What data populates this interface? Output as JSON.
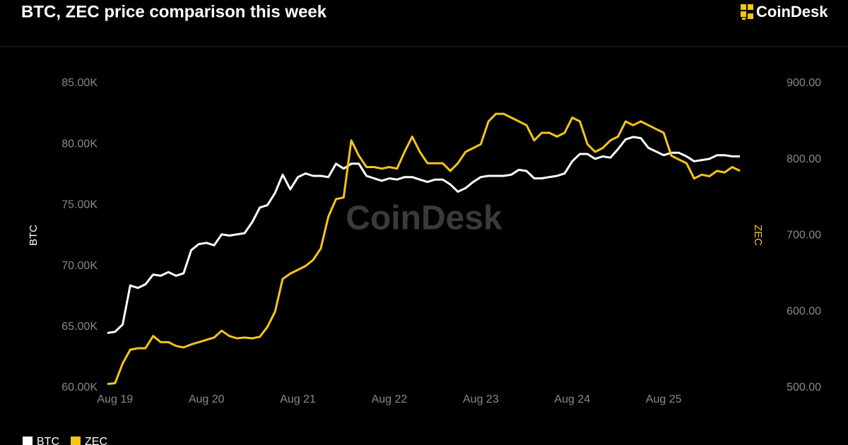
{
  "chart_data": {
    "type": "line",
    "title": "BTC, ZEC price comparison this week",
    "brand": "CoinDesk",
    "watermark": "CoinDesk",
    "y_label": "BTC",
    "y2_label": "ZEC",
    "categories": [
      null,
      "Aug 19",
      null,
      null,
      null,
      null,
      null,
      null,
      null,
      null,
      null,
      null,
      null,
      "Aug 20",
      null,
      null,
      null,
      null,
      null,
      null,
      null,
      null,
      null,
      null,
      null,
      "Aug 21",
      null,
      null,
      null,
      null,
      null,
      null,
      null,
      null,
      null,
      null,
      null,
      "Aug 22",
      null,
      null,
      null,
      null,
      null,
      null,
      null,
      null,
      null,
      null,
      null,
      "Aug 23",
      null,
      null,
      null,
      null,
      null,
      null,
      null,
      null,
      null,
      null,
      null,
      "Aug 24",
      null,
      null,
      null,
      null,
      null,
      null,
      null,
      null,
      null,
      null,
      null,
      "Aug 25",
      null,
      null,
      null,
      null,
      null,
      null,
      null,
      null,
      null,
      null
    ],
    "series": [
      {
        "name": "BTC",
        "color": "#ffffff",
        "values": [
          64500,
          64600,
          65200,
          68400,
          68200,
          68500,
          69300,
          69200,
          69500,
          69200,
          69400,
          71300,
          71800,
          71900,
          71700,
          72600,
          72500,
          72600,
          72700,
          73600,
          74800,
          75000,
          76000,
          77500,
          76300,
          77300,
          77600,
          77400,
          77400,
          77300,
          78400,
          78000,
          78400,
          78400,
          77400,
          77200,
          77000,
          77200,
          77100,
          77300,
          77300,
          77100,
          76900,
          77100,
          77100,
          76700,
          76100,
          76400,
          76900,
          77300,
          77400,
          77400,
          77400,
          77500,
          77900,
          77800,
          77200,
          77200,
          77300,
          77400,
          77600,
          78600,
          79200,
          79200,
          78800,
          79000,
          78900,
          79600,
          80400,
          80600,
          80500,
          79700,
          79400,
          79100,
          79300,
          79300,
          79000,
          78600,
          78700,
          78800,
          79100,
          79100,
          79000,
          79000
        ]
      },
      {
        "name": "ZEC",
        "color": "#f5c518",
        "axis": "y2",
        "values": [
          505,
          506,
          532,
          550,
          552,
          552,
          568,
          560,
          560,
          555,
          553,
          557,
          560,
          563,
          566,
          575,
          568,
          565,
          566,
          565,
          567,
          580,
          600,
          643,
          650,
          655,
          660,
          668,
          683,
          725,
          748,
          750,
          825,
          805,
          790,
          790,
          788,
          790,
          788,
          810,
          830,
          810,
          795,
          795,
          795,
          785,
          795,
          810,
          815,
          820,
          850,
          860,
          860,
          855,
          850,
          845,
          825,
          835,
          835,
          830,
          835,
          855,
          850,
          820,
          810,
          815,
          825,
          830,
          850,
          845,
          850,
          845,
          840,
          835,
          805,
          800,
          795,
          775,
          780,
          778,
          785,
          783,
          790,
          785
        ]
      }
    ],
    "ylim": [
      60000,
      85000
    ],
    "yticks": [
      {
        "value": 60000,
        "label": "60.00K"
      },
      {
        "value": 65000,
        "label": "65.00K"
      },
      {
        "value": 70000,
        "label": "70.00K"
      },
      {
        "value": 75000,
        "label": "75.00K"
      },
      {
        "value": 80000,
        "label": "80.00K"
      },
      {
        "value": 85000,
        "label": "85.00K"
      }
    ],
    "y2lim": [
      500,
      900
    ],
    "y2ticks": [
      {
        "value": 500,
        "label": "500.00"
      },
      {
        "value": 600,
        "label": "600.00"
      },
      {
        "value": 700,
        "label": "700.00"
      },
      {
        "value": 800,
        "label": "800.00"
      },
      {
        "value": 900,
        "label": "900.00"
      }
    ]
  }
}
